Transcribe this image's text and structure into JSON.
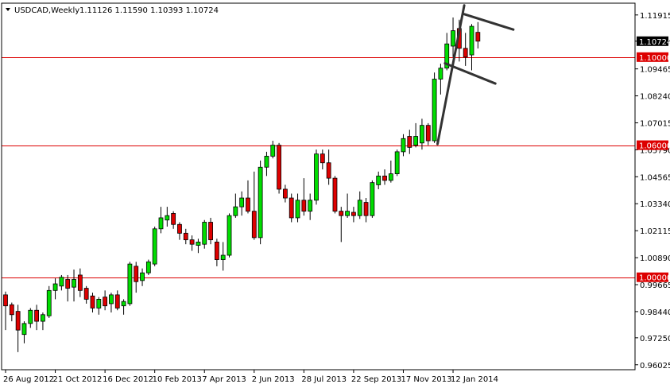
{
  "header": {
    "symbol": "USDCAD,Weekly",
    "ohlc": "1.11126 1.11590 1.10393 1.10724"
  },
  "colors": {
    "bull": "#00dd00",
    "bear": "#dd0000",
    "wick": "#000000",
    "level_line": "#dd0000",
    "current_price_bg": "#000000",
    "current_price_text": "#ffffff",
    "level_label_bg": "#dd0000",
    "level_label_text": "#ffffff",
    "trendline": "#333333"
  },
  "chart_data": {
    "type": "candlestick",
    "title": "",
    "xlabel": "",
    "ylabel": "",
    "grid": false,
    "ylim": [
      0.958,
      1.1245
    ],
    "y_ticks": [
      "1.11915",
      "1.10724",
      "1.09465",
      "1.08240",
      "1.07015",
      "1.05790",
      "1.04565",
      "1.03340",
      "1.02115",
      "1.00890",
      "0.99665",
      "0.98440",
      "0.97250",
      "0.96025"
    ],
    "x_tick_labels": [
      {
        "label": "26 Aug 2012",
        "index": 0
      },
      {
        "label": "21 Oct 2012",
        "index": 8
      },
      {
        "label": "16 Dec 2012",
        "index": 16
      },
      {
        "label": "10 Feb 2013",
        "index": 24
      },
      {
        "label": "7 Apr 2013",
        "index": 32
      },
      {
        "label": "2 Jun 2013",
        "index": 40
      },
      {
        "label": "28 Jul 2013",
        "index": 48
      },
      {
        "label": "22 Sep 2013",
        "index": 56
      },
      {
        "label": "17 Nov 2013",
        "index": 64
      },
      {
        "label": "12 Jan 2014",
        "index": 72
      }
    ],
    "horizontal_levels": [
      {
        "price": 1.1,
        "label": "1.10000"
      },
      {
        "price": 1.06,
        "label": "1.06000"
      },
      {
        "price": 1.0,
        "label": "1.00000"
      }
    ],
    "current_price": {
      "price": 1.10724,
      "label": "1.10724"
    },
    "trendlines": [
      {
        "from": {
          "index": 69.5,
          "price": 1.0605
        },
        "to": {
          "index": 73.8,
          "price": 1.1235
        }
      },
      {
        "from": {
          "index": 73.8,
          "price": 1.1195
        },
        "to": {
          "index": 81.7,
          "price": 1.1125
        }
      },
      {
        "from": {
          "index": 70.7,
          "price": 1.0972
        },
        "to": {
          "index": 78.8,
          "price": 1.088
        }
      }
    ],
    "candles": [
      {
        "o": 0.992,
        "h": 0.9935,
        "l": 0.976,
        "c": 0.987
      },
      {
        "o": 0.9875,
        "h": 0.9885,
        "l": 0.98,
        "c": 0.983
      },
      {
        "o": 0.9845,
        "h": 0.9875,
        "l": 0.966,
        "c": 0.976
      },
      {
        "o": 0.974,
        "h": 0.98,
        "l": 0.97,
        "c": 0.979
      },
      {
        "o": 0.979,
        "h": 0.986,
        "l": 0.977,
        "c": 0.985
      },
      {
        "o": 0.985,
        "h": 0.9875,
        "l": 0.976,
        "c": 0.98
      },
      {
        "o": 0.98,
        "h": 0.984,
        "l": 0.976,
        "c": 0.983
      },
      {
        "o": 0.9825,
        "h": 0.996,
        "l": 0.9815,
        "c": 0.994
      },
      {
        "o": 0.994,
        "h": 0.9995,
        "l": 0.99,
        "c": 0.997
      },
      {
        "o": 0.996,
        "h": 1.001,
        "l": 0.994,
        "c": 1.0
      },
      {
        "o": 0.999,
        "h": 1.001,
        "l": 0.989,
        "c": 0.995
      },
      {
        "o": 0.9955,
        "h": 1.0035,
        "l": 0.989,
        "c": 0.999
      },
      {
        "o": 1.001,
        "h": 1.004,
        "l": 0.991,
        "c": 0.994
      },
      {
        "o": 0.995,
        "h": 0.996,
        "l": 0.988,
        "c": 0.99
      },
      {
        "o": 0.9915,
        "h": 0.993,
        "l": 0.984,
        "c": 0.986
      },
      {
        "o": 0.986,
        "h": 0.991,
        "l": 0.983,
        "c": 0.99
      },
      {
        "o": 0.991,
        "h": 0.994,
        "l": 0.985,
        "c": 0.987
      },
      {
        "o": 0.988,
        "h": 0.993,
        "l": 0.984,
        "c": 0.992
      },
      {
        "o": 0.992,
        "h": 0.994,
        "l": 0.985,
        "c": 0.986
      },
      {
        "o": 0.987,
        "h": 0.99,
        "l": 0.983,
        "c": 0.989
      },
      {
        "o": 0.988,
        "h": 1.007,
        "l": 0.987,
        "c": 1.006
      },
      {
        "o": 1.005,
        "h": 1.007,
        "l": 0.993,
        "c": 0.998
      },
      {
        "o": 0.9985,
        "h": 1.004,
        "l": 0.996,
        "c": 1.002
      },
      {
        "o": 1.002,
        "h": 1.008,
        "l": 1.001,
        "c": 1.007
      },
      {
        "o": 1.006,
        "h": 1.023,
        "l": 1.005,
        "c": 1.022
      },
      {
        "o": 1.022,
        "h": 1.032,
        "l": 1.02,
        "c": 1.027
      },
      {
        "o": 1.026,
        "h": 1.032,
        "l": 1.023,
        "c": 1.028
      },
      {
        "o": 1.029,
        "h": 1.03,
        "l": 1.022,
        "c": 1.024
      },
      {
        "o": 1.024,
        "h": 1.025,
        "l": 1.017,
        "c": 1.02
      },
      {
        "o": 1.02,
        "h": 1.022,
        "l": 1.015,
        "c": 1.017
      },
      {
        "o": 1.017,
        "h": 1.019,
        "l": 1.012,
        "c": 1.015
      },
      {
        "o": 1.0145,
        "h": 1.0175,
        "l": 1.011,
        "c": 1.016
      },
      {
        "o": 1.015,
        "h": 1.026,
        "l": 1.013,
        "c": 1.025
      },
      {
        "o": 1.025,
        "h": 1.027,
        "l": 1.015,
        "c": 1.017
      },
      {
        "o": 1.016,
        "h": 1.0175,
        "l": 1.005,
        "c": 1.008
      },
      {
        "o": 1.008,
        "h": 1.016,
        "l": 1.003,
        "c": 1.01
      },
      {
        "o": 1.01,
        "h": 1.029,
        "l": 1.009,
        "c": 1.028
      },
      {
        "o": 1.028,
        "h": 1.038,
        "l": 1.027,
        "c": 1.032
      },
      {
        "o": 1.032,
        "h": 1.039,
        "l": 1.028,
        "c": 1.036
      },
      {
        "o": 1.036,
        "h": 1.044,
        "l": 1.029,
        "c": 1.03
      },
      {
        "o": 1.03,
        "h": 1.048,
        "l": 1.017,
        "c": 1.018
      },
      {
        "o": 1.018,
        "h": 1.053,
        "l": 1.015,
        "c": 1.05
      },
      {
        "o": 1.05,
        "h": 1.057,
        "l": 1.046,
        "c": 1.055
      },
      {
        "o": 1.055,
        "h": 1.062,
        "l": 1.054,
        "c": 1.06
      },
      {
        "o": 1.06,
        "h": 1.061,
        "l": 1.038,
        "c": 1.04
      },
      {
        "o": 1.04,
        "h": 1.042,
        "l": 1.034,
        "c": 1.036
      },
      {
        "o": 1.036,
        "h": 1.038,
        "l": 1.025,
        "c": 1.027
      },
      {
        "o": 1.027,
        "h": 1.038,
        "l": 1.025,
        "c": 1.035
      },
      {
        "o": 1.035,
        "h": 1.045,
        "l": 1.028,
        "c": 1.03
      },
      {
        "o": 1.03,
        "h": 1.038,
        "l": 1.026,
        "c": 1.035
      },
      {
        "o": 1.035,
        "h": 1.058,
        "l": 1.033,
        "c": 1.056
      },
      {
        "o": 1.056,
        "h": 1.058,
        "l": 1.049,
        "c": 1.052
      },
      {
        "o": 1.052,
        "h": 1.058,
        "l": 1.042,
        "c": 1.045
      },
      {
        "o": 1.045,
        "h": 1.046,
        "l": 1.029,
        "c": 1.03
      },
      {
        "o": 1.03,
        "h": 1.032,
        "l": 1.016,
        "c": 1.028
      },
      {
        "o": 1.028,
        "h": 1.038,
        "l": 1.027,
        "c": 1.03
      },
      {
        "o": 1.0295,
        "h": 1.032,
        "l": 1.025,
        "c": 1.028
      },
      {
        "o": 1.028,
        "h": 1.039,
        "l": 1.0265,
        "c": 1.035
      },
      {
        "o": 1.034,
        "h": 1.036,
        "l": 1.025,
        "c": 1.028
      },
      {
        "o": 1.028,
        "h": 1.044,
        "l": 1.027,
        "c": 1.043
      },
      {
        "o": 1.042,
        "h": 1.048,
        "l": 1.04,
        "c": 1.046
      },
      {
        "o": 1.046,
        "h": 1.049,
        "l": 1.042,
        "c": 1.044
      },
      {
        "o": 1.044,
        "h": 1.053,
        "l": 1.043,
        "c": 1.047
      },
      {
        "o": 1.047,
        "h": 1.058,
        "l": 1.046,
        "c": 1.057
      },
      {
        "o": 1.057,
        "h": 1.065,
        "l": 1.055,
        "c": 1.063
      },
      {
        "o": 1.064,
        "h": 1.067,
        "l": 1.056,
        "c": 1.059
      },
      {
        "o": 1.06,
        "h": 1.07,
        "l": 1.059,
        "c": 1.064
      },
      {
        "o": 1.061,
        "h": 1.072,
        "l": 1.058,
        "c": 1.069
      },
      {
        "o": 1.069,
        "h": 1.07,
        "l": 1.06,
        "c": 1.062
      },
      {
        "o": 1.062,
        "h": 1.093,
        "l": 1.061,
        "c": 1.09
      },
      {
        "o": 1.09,
        "h": 1.097,
        "l": 1.083,
        "c": 1.095
      },
      {
        "o": 1.095,
        "h": 1.111,
        "l": 1.094,
        "c": 1.106
      },
      {
        "o": 1.105,
        "h": 1.118,
        "l": 1.1,
        "c": 1.112
      },
      {
        "o": 1.113,
        "h": 1.117,
        "l": 1.098,
        "c": 1.104
      },
      {
        "o": 1.104,
        "h": 1.111,
        "l": 1.096,
        "c": 1.1
      },
      {
        "o": 1.101,
        "h": 1.115,
        "l": 1.094,
        "c": 1.114
      },
      {
        "o": 1.11126,
        "h": 1.1159,
        "l": 1.10393,
        "c": 1.10724
      }
    ]
  }
}
